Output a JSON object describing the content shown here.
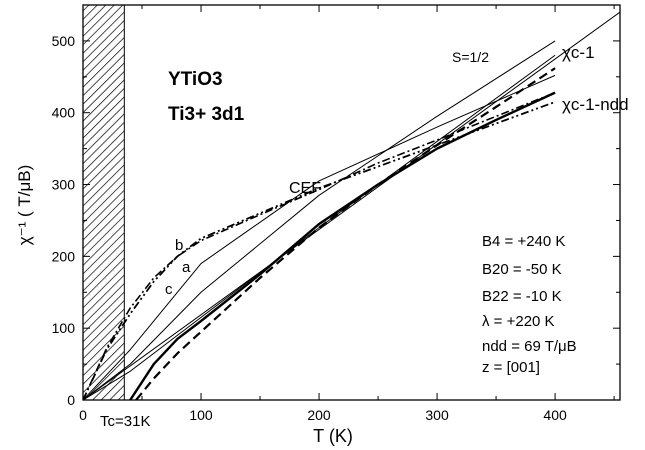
{
  "chart_data": {
    "type": "line",
    "xlabel": "T (K)",
    "ylabel": "χ⁻¹ ( T/μB)",
    "xlim": [
      0,
      455
    ],
    "ylim": [
      0,
      550
    ],
    "xticks": [
      "0",
      "100",
      "200",
      "300",
      "400"
    ],
    "yticks": [
      "0",
      "100",
      "200",
      "300",
      "400",
      "500"
    ],
    "shaded_region": {
      "x0": 0,
      "x1": 35
    },
    "tc_label": "Tc=31K",
    "compound": "YTiO3",
    "ion": "Ti3+   3d1",
    "cef_label": "CEF",
    "curve_labels": {
      "b": "b",
      "a": "a",
      "c": "c",
      "s_half": "S=1/2",
      "chi_c_inv": "χc-1",
      "chi_c_inv_ndd": "χc-1-ndd"
    },
    "params": [
      "B4 = +240 K",
      "B20 = -50 K",
      "B22 = -10 K",
      "λ = +220 K",
      "ndd = 69 T/μB",
      "z = [001]"
    ],
    "series": [
      {
        "style": "thin",
        "x": [
          0,
          465
        ],
        "y": [
          0,
          552
        ]
      },
      {
        "style": "thin",
        "x": [
          0,
          40,
          100,
          200,
          300,
          400
        ],
        "y": [
          0,
          40,
          115,
          240,
          360,
          480
        ]
      },
      {
        "style": "thin",
        "x": [
          0,
          40,
          100,
          200,
          300,
          400
        ],
        "y": [
          0,
          50,
          150,
          285,
          395,
          500
        ]
      },
      {
        "style": "thin",
        "x": [
          0,
          40,
          100,
          200,
          300,
          400
        ],
        "y": [
          0,
          70,
          190,
          305,
          380,
          452
        ]
      },
      {
        "style": "dashdotdot",
        "x": [
          0,
          20,
          40,
          60,
          80,
          100,
          150,
          200,
          250,
          300,
          350,
          400
        ],
        "y": [
          0,
          70,
          120,
          165,
          200,
          225,
          260,
          295,
          325,
          355,
          385,
          415
        ]
      },
      {
        "style": "dashdot",
        "x": [
          0,
          20,
          40,
          60,
          80,
          100,
          150,
          200,
          250,
          300,
          350,
          400
        ],
        "y": [
          0,
          72,
          128,
          170,
          200,
          222,
          258,
          293,
          330,
          362,
          395,
          428
        ]
      },
      {
        "style": "thick",
        "x": [
          40,
          60,
          80,
          100,
          150,
          200,
          250,
          300,
          350,
          400
        ],
        "y": [
          0,
          50,
          85,
          110,
          175,
          245,
          300,
          350,
          390,
          428
        ]
      },
      {
        "style": "dashed",
        "x": [
          45,
          60,
          80,
          100,
          150,
          200,
          250,
          300,
          350,
          400
        ],
        "y": [
          0,
          30,
          65,
          95,
          170,
          240,
          300,
          355,
          408,
          462
        ]
      }
    ]
  }
}
